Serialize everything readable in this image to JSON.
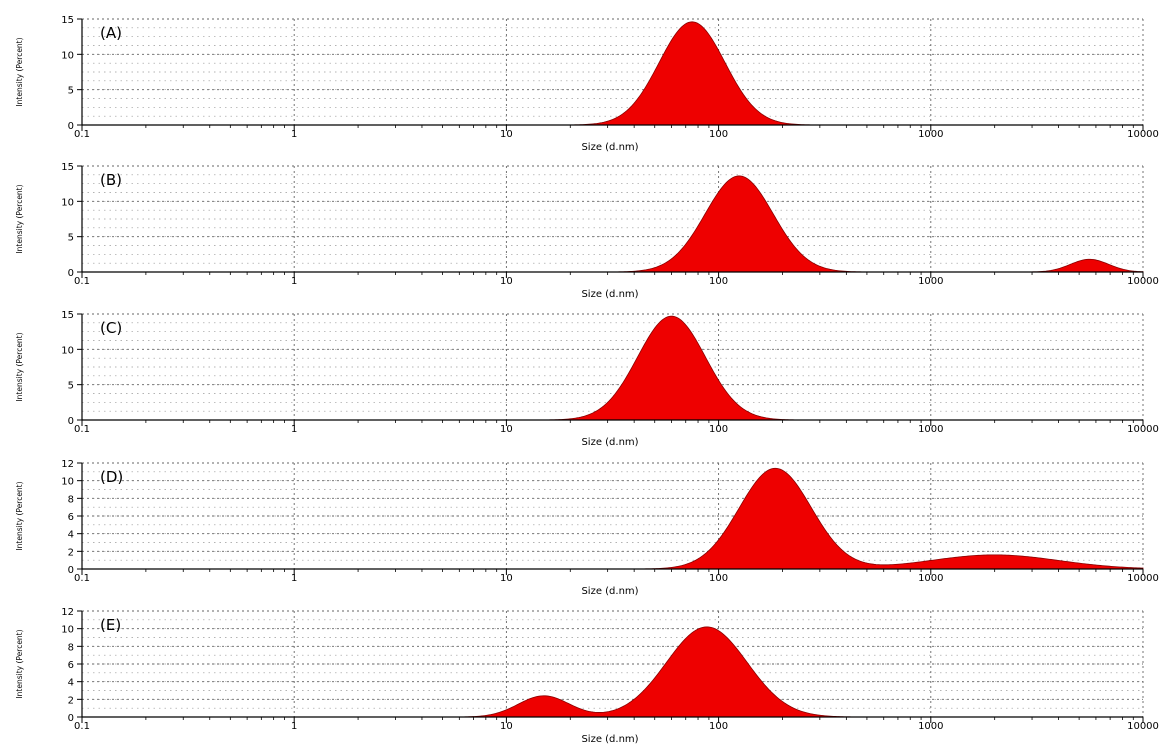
{
  "chart_data": [
    {
      "type": "area",
      "panel_label": "(A)",
      "xlabel": "Size (d.nm)",
      "ylabel": "Intensity (Percent)",
      "xscale": "log",
      "xlim": [
        0.1,
        10000
      ],
      "ylim": [
        0,
        15
      ],
      "xticks": [
        "0.1",
        "1",
        "10",
        "100",
        "1000",
        "10000"
      ],
      "yticks": [
        "0",
        "5",
        "10",
        "15"
      ],
      "grid": true,
      "color": "#ee0000",
      "peaks": [
        {
          "center": 75,
          "height": 14.6,
          "width": 0.155
        }
      ]
    },
    {
      "type": "area",
      "panel_label": "(B)",
      "xlabel": "Size (d.nm)",
      "ylabel": "Intensity (Percent)",
      "xscale": "log",
      "xlim": [
        0.1,
        10000
      ],
      "ylim": [
        0,
        15
      ],
      "xticks": [
        "0.1",
        "1",
        "10",
        "100",
        "1000",
        "10000"
      ],
      "yticks": [
        "0",
        "5",
        "10",
        "15"
      ],
      "grid": true,
      "color": "#ee0000",
      "peaks": [
        {
          "center": 125,
          "height": 13.6,
          "width": 0.16
        },
        {
          "center": 5600,
          "height": 1.8,
          "width": 0.09
        }
      ]
    },
    {
      "type": "area",
      "panel_label": "(C)",
      "xlabel": "Size (d.nm)",
      "ylabel": "Intensity (Percent)",
      "xscale": "log",
      "xlim": [
        0.1,
        10000
      ],
      "ylim": [
        0,
        15
      ],
      "xticks": [
        "0.1",
        "1",
        "10",
        "100",
        "1000",
        "10000"
      ],
      "yticks": [
        "0",
        "5",
        "10",
        "15"
      ],
      "grid": true,
      "color": "#ee0000",
      "peaks": [
        {
          "center": 60,
          "height": 14.7,
          "width": 0.16
        }
      ]
    },
    {
      "type": "area",
      "panel_label": "(D)",
      "xlabel": "Size (d.nm)",
      "ylabel": "Intensity (Percent)",
      "xscale": "log",
      "xlim": [
        0.1,
        10000
      ],
      "ylim": [
        0,
        12
      ],
      "xticks": [
        "0.1",
        "1",
        "10",
        "100",
        "1000",
        "10000"
      ],
      "yticks": [
        "0",
        "2",
        "4",
        "6",
        "8",
        "10",
        "12"
      ],
      "grid": true,
      "color": "#ee0000",
      "peaks": [
        {
          "center": 185,
          "height": 11.4,
          "width": 0.17
        },
        {
          "center": 2000,
          "height": 1.6,
          "width": 0.3
        }
      ]
    },
    {
      "type": "area",
      "panel_label": "(E)",
      "xlabel": "Size (d.nm)",
      "ylabel": "Intensity (Percent)",
      "xscale": "log",
      "xlim": [
        0.1,
        10000
      ],
      "ylim": [
        0,
        12
      ],
      "xticks": [
        "0.1",
        "1",
        "10",
        "100",
        "1000",
        "10000"
      ],
      "yticks": [
        "0",
        "2",
        "4",
        "6",
        "8",
        "10",
        "12"
      ],
      "grid": true,
      "color": "#ee0000",
      "peaks": [
        {
          "center": 15,
          "height": 2.4,
          "width": 0.12
        },
        {
          "center": 88,
          "height": 10.2,
          "width": 0.19
        }
      ]
    }
  ]
}
